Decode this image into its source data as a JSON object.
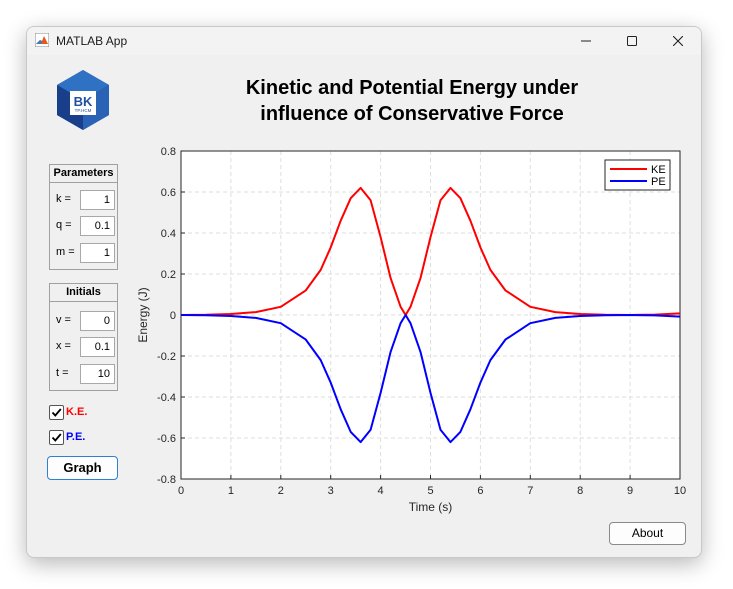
{
  "window": {
    "title": "MATLAB App"
  },
  "logo": {
    "text": "BK",
    "subtext": "TP.HCM"
  },
  "header": {
    "line1": "Kinetic and Potential Energy under",
    "line2": "influence of Conservative Force"
  },
  "parameters": {
    "title": "Parameters",
    "fields": [
      {
        "label": "k =",
        "value": "1"
      },
      {
        "label": "q =",
        "value": "0.1"
      },
      {
        "label": "m =",
        "value": "1"
      }
    ]
  },
  "initials": {
    "title": "Initials",
    "fields": [
      {
        "label": "v =",
        "value": "0"
      },
      {
        "label": "x =",
        "value": "0.1"
      },
      {
        "label": "t =",
        "value": "10"
      }
    ]
  },
  "checkboxes": [
    {
      "label": "K.E.",
      "checked": true,
      "color": "#ff0000"
    },
    {
      "label": "P.E.",
      "checked": true,
      "color": "#0000ff"
    }
  ],
  "buttons": {
    "graph": "Graph",
    "about": "About"
  },
  "chart_data": {
    "type": "line",
    "xlabel": "Time (s)",
    "ylabel": "Energy (J)",
    "xlim": [
      0,
      10
    ],
    "ylim": [
      -0.8,
      0.8
    ],
    "xticks": [
      "0",
      "1",
      "2",
      "3",
      "4",
      "5",
      "6",
      "7",
      "8",
      "9",
      "10"
    ],
    "yticks": [
      "-0.8",
      "-0.6",
      "-0.4",
      "-0.2",
      "0",
      "0.2",
      "0.4",
      "0.6",
      "0.8"
    ],
    "grid": true,
    "legend_position": "top-right",
    "x": [
      0,
      0.5,
      1,
      1.5,
      2,
      2.5,
      2.8,
      3,
      3.2,
      3.4,
      3.6,
      3.8,
      4,
      4.2,
      4.4,
      4.5,
      4.6,
      4.8,
      5,
      5.2,
      5.4,
      5.6,
      5.8,
      6,
      6.2,
      6.5,
      7,
      7.5,
      8,
      8.5,
      9,
      9.5,
      10
    ],
    "series": [
      {
        "name": "KE",
        "color": "#ff0000",
        "values": [
          0,
          0.001,
          0.005,
          0.014,
          0.04,
          0.12,
          0.22,
          0.33,
          0.46,
          0.57,
          0.62,
          0.56,
          0.38,
          0.18,
          0.04,
          0,
          0.04,
          0.18,
          0.38,
          0.56,
          0.62,
          0.57,
          0.46,
          0.33,
          0.22,
          0.12,
          0.04,
          0.014,
          0.005,
          0.001,
          0,
          0.002,
          0.008
        ]
      },
      {
        "name": "PE",
        "color": "#0000ff",
        "values": [
          0,
          -0.001,
          -0.005,
          -0.014,
          -0.04,
          -0.12,
          -0.22,
          -0.33,
          -0.46,
          -0.57,
          -0.62,
          -0.56,
          -0.38,
          -0.18,
          -0.04,
          0,
          -0.04,
          -0.18,
          -0.38,
          -0.56,
          -0.62,
          -0.57,
          -0.46,
          -0.33,
          -0.22,
          -0.12,
          -0.04,
          -0.014,
          -0.005,
          -0.001,
          0,
          -0.002,
          -0.008
        ]
      }
    ]
  }
}
